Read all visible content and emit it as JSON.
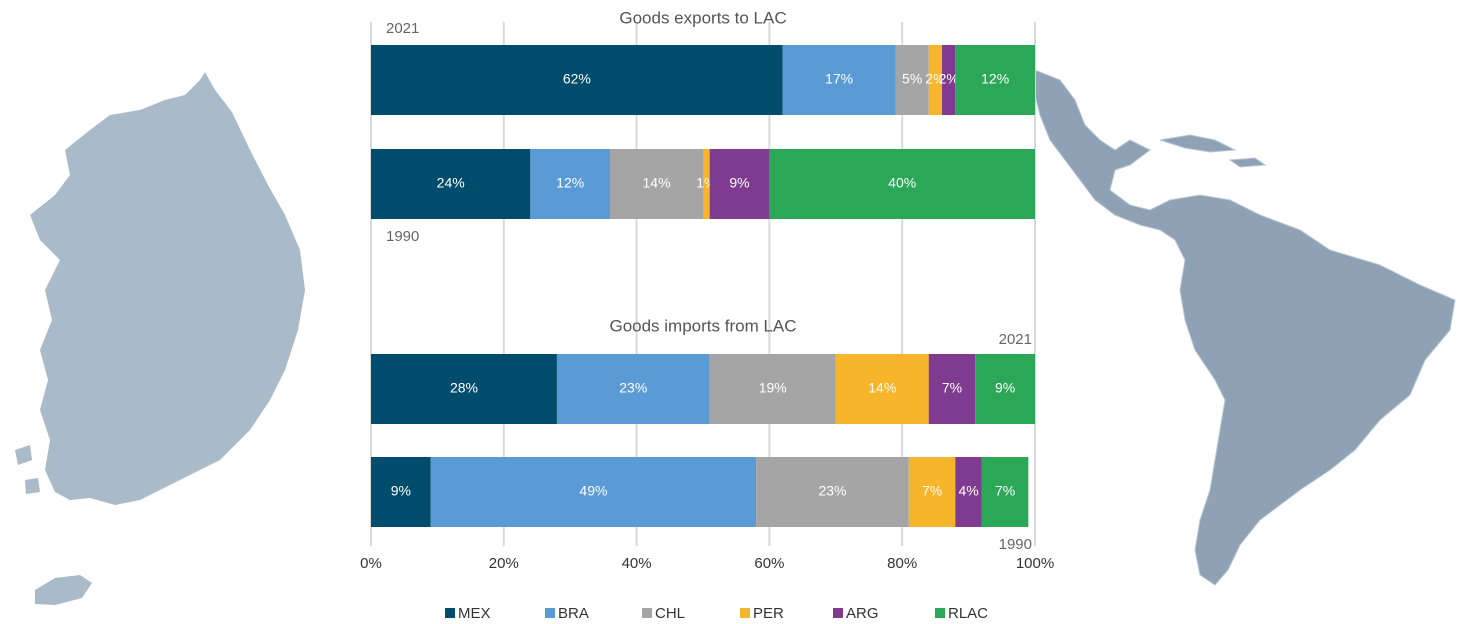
{
  "chart_data": {
    "type": "bar",
    "orientation": "horizontal",
    "stacked": true,
    "series": [
      {
        "name": "MEX",
        "color": "#004c6d"
      },
      {
        "name": "BRA",
        "color": "#5b9bd5"
      },
      {
        "name": "CHL",
        "color": "#a5a5a5"
      },
      {
        "name": "PER",
        "color": "#f7b52c"
      },
      {
        "name": "ARG",
        "color": "#7e3b8f"
      },
      {
        "name": "RLAC",
        "color": "#2aa857"
      }
    ],
    "panels": [
      {
        "title": "Goods exports to LAC",
        "categories": [
          "2021",
          "1990"
        ],
        "values": [
          [
            62,
            17,
            5,
            2,
            2,
            12
          ],
          [
            24,
            12,
            14,
            1,
            9,
            40
          ]
        ],
        "value_labels": [
          [
            "62%",
            "17%",
            "5%",
            "2%",
            "2%",
            "12%"
          ],
          [
            "24%",
            "12%",
            "14%",
            "1%",
            "9%",
            "40%"
          ]
        ]
      },
      {
        "title": "Goods imports from LAC",
        "categories": [
          "2021",
          "1990"
        ],
        "values": [
          [
            28,
            23,
            19,
            14,
            7,
            9
          ],
          [
            9,
            49,
            23,
            7,
            4,
            7
          ]
        ],
        "value_labels": [
          [
            "28%",
            "23%",
            "19%",
            "14%",
            "7%",
            "9%"
          ],
          [
            "9%",
            "49%",
            "23%",
            "7%",
            "4%",
            "7%"
          ]
        ]
      }
    ],
    "xlim": [
      0,
      100
    ],
    "xticks": [
      {
        "value": 0,
        "label": "0%"
      },
      {
        "value": 20,
        "label": "20%"
      },
      {
        "value": 40,
        "label": "40%"
      },
      {
        "value": 60,
        "label": "60%"
      },
      {
        "value": 80,
        "label": "80%"
      },
      {
        "value": 100,
        "label": "100%"
      }
    ],
    "grid": true,
    "legend": "bottom"
  }
}
